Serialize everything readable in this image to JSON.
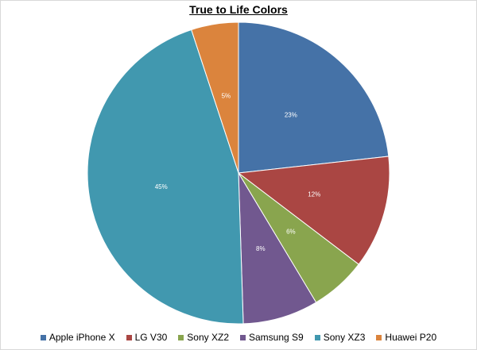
{
  "chart_data": {
    "type": "pie",
    "title": "True to Life Colors",
    "categories": [
      "Apple iPhone X",
      "LG V30",
      "Sony XZ2",
      "Samsung S9",
      "Sony XZ3",
      "Huawei P20"
    ],
    "values": [
      23,
      12,
      6,
      8,
      45,
      5
    ],
    "data_labels": [
      "23%",
      "12%",
      "6%",
      "8%",
      "45%",
      "5%"
    ],
    "colors": [
      "#4572A7",
      "#AA4643",
      "#89A54E",
      "#71588F",
      "#4198AF",
      "#DB843D"
    ],
    "start_angle": "12 o'clock",
    "direction": "clockwise",
    "legend": "bottom"
  }
}
